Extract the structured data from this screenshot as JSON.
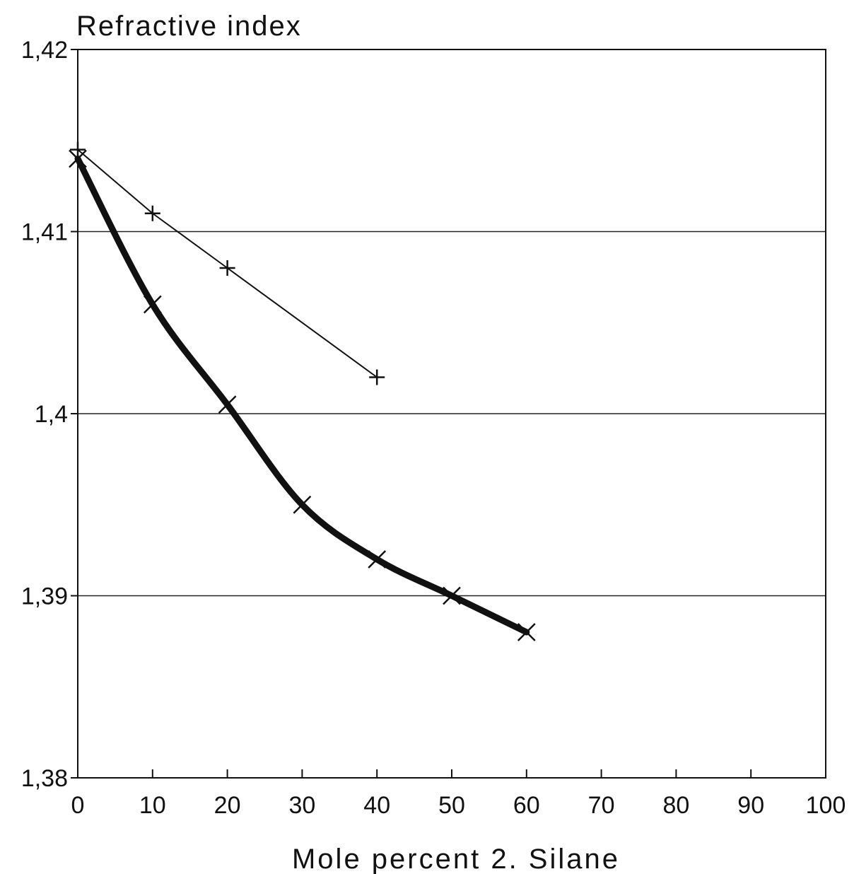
{
  "chart_data": {
    "type": "line",
    "title": "Refractive index",
    "xlabel": "Mole percent 2. Silane",
    "ylabel": "",
    "xlim": [
      0,
      100
    ],
    "ylim": [
      1.38,
      1.42
    ],
    "x_ticks": [
      0,
      10,
      20,
      30,
      40,
      50,
      60,
      70,
      80,
      90,
      100
    ],
    "x_tick_labels": [
      "0",
      "10",
      "20",
      "30",
      "40",
      "50",
      "60",
      "70",
      "80",
      "90",
      "100"
    ],
    "y_ticks": [
      1.38,
      1.39,
      1.4,
      1.41,
      1.42
    ],
    "y_tick_labels": [
      "1,38",
      "1,39",
      "1,4",
      "1,41",
      "1,42"
    ],
    "grid": "horizontal",
    "legend": "none",
    "series": [
      {
        "marker": "plus",
        "line_weight": "thin",
        "color": "#111111",
        "points": [
          [
            0,
            1.4145
          ],
          [
            10,
            1.411
          ],
          [
            20,
            1.408
          ],
          [
            40,
            1.402
          ]
        ]
      },
      {
        "marker": "x",
        "line_weight": "thick",
        "color": "#111111",
        "points": [
          [
            0,
            1.414
          ],
          [
            10,
            1.406
          ],
          [
            20,
            1.4005
          ],
          [
            30,
            1.395
          ],
          [
            40,
            1.392
          ],
          [
            50,
            1.39
          ],
          [
            60,
            1.388
          ]
        ]
      }
    ]
  }
}
